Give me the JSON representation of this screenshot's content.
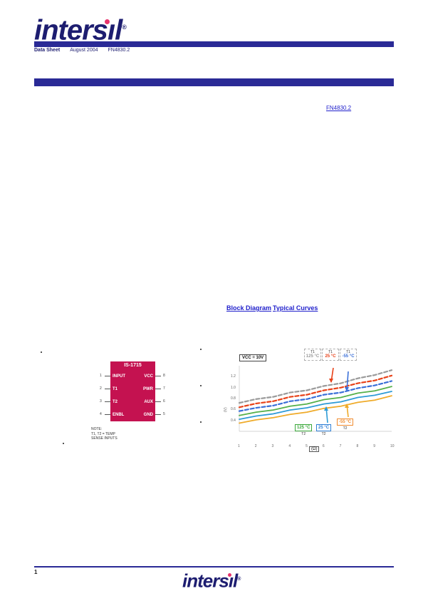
{
  "logo": {
    "word_start": "inters",
    "word_i": "ı",
    "word_end": "l",
    "registered": "®"
  },
  "header": {
    "meta_line": "Data Sheet",
    "meta_date": "August 2004",
    "meta_file": "FN4830.2",
    "doc_link": "FN4830.2"
  },
  "mid_links": {
    "left": "Block Diagram",
    "right": "Typical Curves"
  },
  "chip": {
    "title": "IS-1715",
    "pins_left": [
      {
        "num": "1",
        "label": "INPUT"
      },
      {
        "num": "2",
        "label": "T1"
      },
      {
        "num": "3",
        "label": "T2"
      },
      {
        "num": "4",
        "label": "ENBL"
      }
    ],
    "pins_right": [
      {
        "num": "8",
        "label": "VCC"
      },
      {
        "num": "7",
        "label": "PWR"
      },
      {
        "num": "6",
        "label": "AUX"
      },
      {
        "num": "5",
        "label": "GND"
      }
    ],
    "notes": [
      "NOTE:",
      "T1, T2 = TEMP",
      "SENSE INPUTS"
    ]
  },
  "chart_data": {
    "type": "line",
    "title": "",
    "annotation": "VCC = 10V",
    "xlabel": "(Ω)",
    "ylabel": "(V)",
    "x": [
      1,
      2,
      3,
      4,
      5,
      6,
      7,
      8,
      9,
      10
    ],
    "x_ticks": [
      "1",
      "2",
      "3",
      "4",
      "5",
      "6",
      "7",
      "8",
      "9",
      "10"
    ],
    "y_ticks": [
      "1.2",
      "1.0",
      "0.8",
      "0.6",
      "0.4"
    ],
    "ylim": [
      0.2,
      1.4
    ],
    "series": [
      {
        "name": "T1 125 °C",
        "color": "#9a9a9a",
        "dash": "5 3",
        "values": [
          0.72,
          0.79,
          0.83,
          0.91,
          0.95,
          1.03,
          1.08,
          1.17,
          1.23,
          1.32
        ]
      },
      {
        "name": "T1 25 °C",
        "color": "#e84118",
        "dash": "5 3",
        "values": [
          0.64,
          0.71,
          0.75,
          0.83,
          0.87,
          0.95,
          1.0,
          1.08,
          1.13,
          1.22
        ]
      },
      {
        "name": "T1 -55 °C",
        "color": "#3a6fd8",
        "dash": "5 3",
        "values": [
          0.57,
          0.63,
          0.67,
          0.75,
          0.79,
          0.87,
          0.91,
          0.99,
          1.04,
          1.12
        ]
      },
      {
        "name": "T2 125 °C",
        "color": "#55b04a",
        "dash": "",
        "values": [
          0.49,
          0.55,
          0.59,
          0.66,
          0.7,
          0.78,
          0.82,
          0.9,
          0.94,
          1.02
        ]
      },
      {
        "name": "T2 25 °C",
        "color": "#2e9bd6",
        "dash": "",
        "values": [
          0.42,
          0.48,
          0.52,
          0.59,
          0.63,
          0.7,
          0.74,
          0.82,
          0.86,
          0.93
        ]
      },
      {
        "name": "T2 -55 °C",
        "color": "#efab2a",
        "dash": "",
        "values": [
          0.35,
          0.41,
          0.45,
          0.51,
          0.55,
          0.62,
          0.66,
          0.73,
          0.77,
          0.85
        ]
      }
    ],
    "top_labels": [
      {
        "group": "T1",
        "temp": "125 °C",
        "color": "#9a9a9a"
      },
      {
        "group": "T1",
        "temp": "25 °C",
        "color": "#e84118"
      },
      {
        "group": "T1",
        "temp": "-55 °C",
        "color": "#3a6fd8"
      }
    ],
    "bottom_labels": [
      {
        "group": "T2",
        "temp": "125 °C",
        "color": "#3aa83a"
      },
      {
        "group": "T2",
        "temp": "25 °C",
        "color": "#2e7fd6"
      },
      {
        "group": "T2",
        "temp": "-55 °C",
        "color": "#f08c30"
      }
    ]
  },
  "footer": {
    "page_number": "1"
  }
}
